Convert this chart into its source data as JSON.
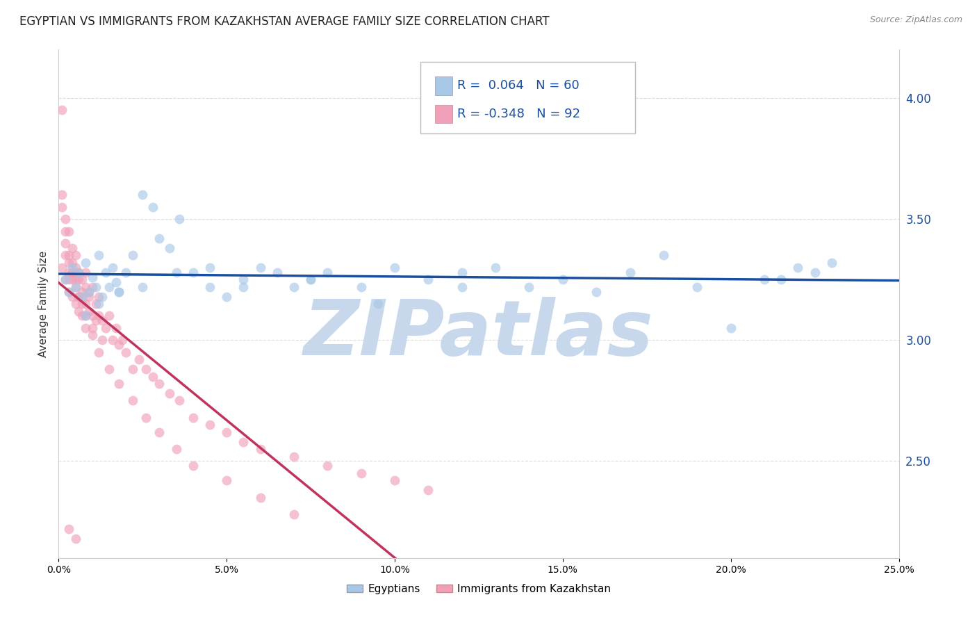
{
  "title": "EGYPTIAN VS IMMIGRANTS FROM KAZAKHSTAN AVERAGE FAMILY SIZE CORRELATION CHART",
  "source_text": "Source: ZipAtlas.com",
  "ylabel": "Average Family Size",
  "watermark": "ZIPatlas",
  "legend_entries": [
    {
      "label": "Egyptians",
      "color": "#aec6e8",
      "R": 0.064,
      "N": 60
    },
    {
      "label": "Immigrants from Kazakhstan",
      "color": "#f4a7b9",
      "R": -0.348,
      "N": 92
    }
  ],
  "blue_scatter_x": [
    0.002,
    0.003,
    0.004,
    0.005,
    0.006,
    0.007,
    0.008,
    0.009,
    0.01,
    0.011,
    0.012,
    0.013,
    0.014,
    0.015,
    0.016,
    0.017,
    0.018,
    0.02,
    0.022,
    0.025,
    0.028,
    0.03,
    0.033,
    0.036,
    0.04,
    0.045,
    0.05,
    0.055,
    0.06,
    0.065,
    0.07,
    0.075,
    0.08,
    0.09,
    0.1,
    0.11,
    0.12,
    0.13,
    0.14,
    0.15,
    0.16,
    0.17,
    0.18,
    0.19,
    0.2,
    0.21,
    0.215,
    0.22,
    0.225,
    0.23,
    0.008,
    0.012,
    0.018,
    0.025,
    0.035,
    0.045,
    0.055,
    0.075,
    0.095,
    0.12
  ],
  "blue_scatter_y": [
    3.25,
    3.2,
    3.3,
    3.22,
    3.28,
    3.18,
    3.32,
    3.2,
    3.26,
    3.22,
    3.35,
    3.18,
    3.28,
    3.22,
    3.3,
    3.24,
    3.2,
    3.28,
    3.35,
    3.6,
    3.55,
    3.42,
    3.38,
    3.5,
    3.28,
    3.22,
    3.18,
    3.25,
    3.3,
    3.28,
    3.22,
    3.25,
    3.28,
    3.22,
    3.3,
    3.25,
    3.28,
    3.3,
    3.22,
    3.25,
    3.2,
    3.28,
    3.35,
    3.22,
    3.05,
    3.25,
    3.25,
    3.3,
    3.28,
    3.32,
    3.1,
    3.15,
    3.2,
    3.22,
    3.28,
    3.3,
    3.22,
    3.25,
    3.15,
    3.22
  ],
  "pink_scatter_x": [
    0.001,
    0.001,
    0.001,
    0.002,
    0.002,
    0.002,
    0.002,
    0.003,
    0.003,
    0.003,
    0.003,
    0.003,
    0.004,
    0.004,
    0.004,
    0.004,
    0.004,
    0.005,
    0.005,
    0.005,
    0.005,
    0.005,
    0.006,
    0.006,
    0.006,
    0.006,
    0.007,
    0.007,
    0.007,
    0.007,
    0.008,
    0.008,
    0.008,
    0.008,
    0.009,
    0.009,
    0.009,
    0.01,
    0.01,
    0.01,
    0.011,
    0.011,
    0.012,
    0.012,
    0.013,
    0.013,
    0.014,
    0.015,
    0.016,
    0.017,
    0.018,
    0.019,
    0.02,
    0.022,
    0.024,
    0.026,
    0.028,
    0.03,
    0.033,
    0.036,
    0.04,
    0.045,
    0.05,
    0.055,
    0.06,
    0.07,
    0.08,
    0.09,
    0.1,
    0.11,
    0.001,
    0.002,
    0.003,
    0.004,
    0.005,
    0.006,
    0.007,
    0.008,
    0.01,
    0.012,
    0.015,
    0.018,
    0.022,
    0.026,
    0.03,
    0.035,
    0.04,
    0.05,
    0.06,
    0.07,
    0.003,
    0.005
  ],
  "pink_scatter_y": [
    3.95,
    3.3,
    3.55,
    3.4,
    3.5,
    3.35,
    3.25,
    3.45,
    3.28,
    3.35,
    3.2,
    3.25,
    3.38,
    3.25,
    3.18,
    3.28,
    3.32,
    3.22,
    3.3,
    3.35,
    3.15,
    3.28,
    3.25,
    3.18,
    3.28,
    3.12,
    3.2,
    3.15,
    3.25,
    3.18,
    3.22,
    3.1,
    3.28,
    3.15,
    3.2,
    3.12,
    3.18,
    3.1,
    3.22,
    3.05,
    3.15,
    3.08,
    3.18,
    3.1,
    3.08,
    3.0,
    3.05,
    3.1,
    3.0,
    3.05,
    2.98,
    3.0,
    2.95,
    2.88,
    2.92,
    2.88,
    2.85,
    2.82,
    2.78,
    2.75,
    2.68,
    2.65,
    2.62,
    2.58,
    2.55,
    2.52,
    2.48,
    2.45,
    2.42,
    2.38,
    3.6,
    3.45,
    3.32,
    3.28,
    3.25,
    3.18,
    3.1,
    3.05,
    3.02,
    2.95,
    2.88,
    2.82,
    2.75,
    2.68,
    2.62,
    2.55,
    2.48,
    2.42,
    2.35,
    2.28,
    2.22,
    2.18
  ],
  "xlim": [
    0.0,
    0.25
  ],
  "ylim": [
    2.1,
    4.2
  ],
  "yticks_right": [
    2.5,
    3.0,
    3.5,
    4.0
  ],
  "grid_color": "#dddddd",
  "blue_line_color": "#1a4fa0",
  "pink_line_color": "#c0335a",
  "blue_scatter_color": "#a8c8e8",
  "pink_scatter_color": "#f0a0b8",
  "scatter_size": 100,
  "scatter_alpha": 0.65,
  "title_fontsize": 12,
  "axis_label_fontsize": 11,
  "legend_fontsize": 13,
  "watermark_color": "#c8d8ec",
  "watermark_fontsize": 80,
  "pink_line_x_end": 0.15
}
